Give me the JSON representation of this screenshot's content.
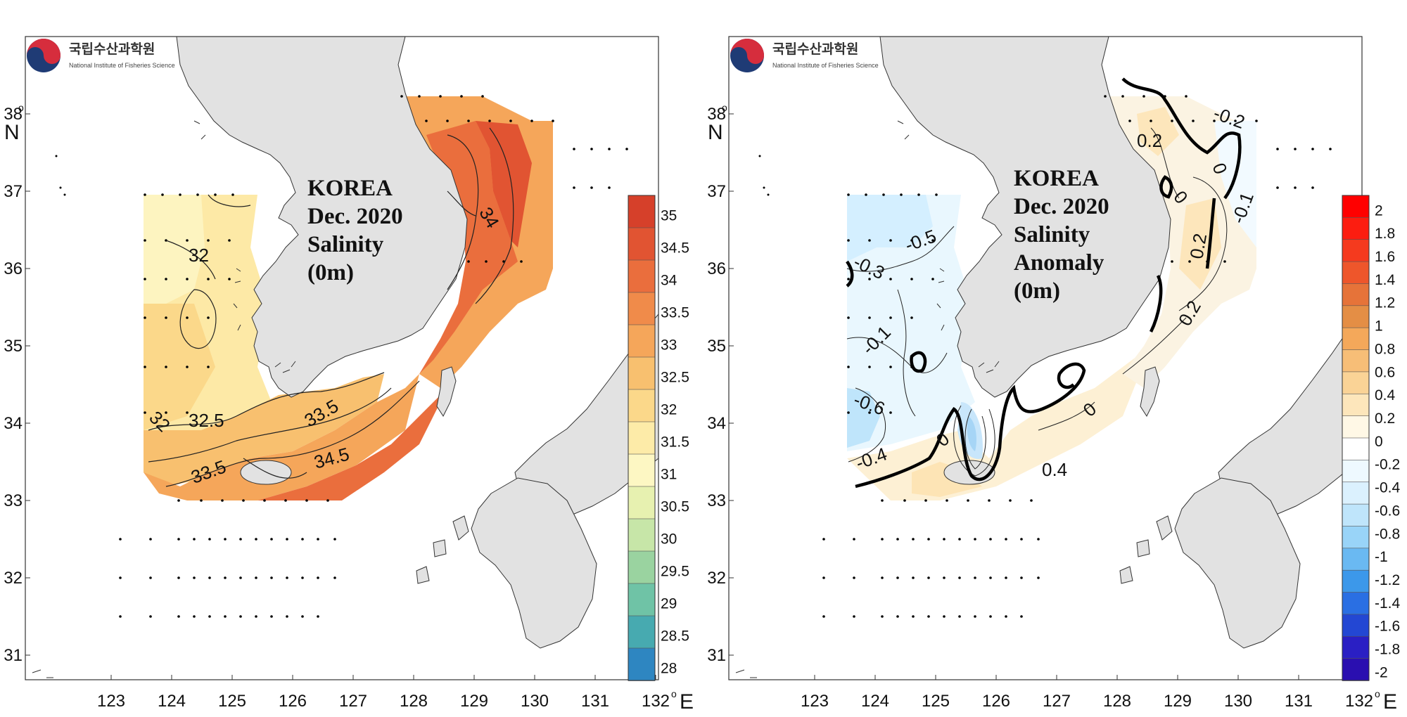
{
  "logo": {
    "korean": "국립수산과학원",
    "english": "National Institute of Fisheries Science"
  },
  "map_data": {
    "lon_ticks": [
      "123",
      "124",
      "125",
      "126",
      "127",
      "128",
      "129",
      "130",
      "131",
      "132"
    ],
    "lat_ticks": [
      "31",
      "32",
      "33",
      "34",
      "35",
      "36",
      "37",
      "38"
    ],
    "lon_unit": "E",
    "lat_unit": "N",
    "degree_symbol": "o"
  },
  "panels": [
    {
      "id": "salinity",
      "title_lines": [
        "KOREA",
        "Dec. 2020",
        "Salinity",
        "(0m)"
      ],
      "contour_labels": [
        "32",
        "32",
        "32.5",
        "33.5",
        "33.5",
        "34.5",
        "34"
      ],
      "colorbar": {
        "labels": [
          "35",
          "34.5",
          "34",
          "33.5",
          "33",
          "32.5",
          "32",
          "31.5",
          "31",
          "30.5",
          "30",
          "29.5",
          "29",
          "28.5",
          "28"
        ],
        "colors": [
          "#d6402a",
          "#e15432",
          "#ea6e3d",
          "#f08b4a",
          "#f5a65a",
          "#f8c06f",
          "#fbd88a",
          "#fdeba8",
          "#fdf7c3",
          "#e7f1b0",
          "#c7e6a8",
          "#9ad3a0",
          "#6fc3a6",
          "#47aab0",
          "#2e86c1"
        ]
      }
    },
    {
      "id": "anomaly",
      "title_lines": [
        "KOREA",
        "Dec. 2020",
        "Salinity",
        "Anomaly",
        "(0m)"
      ],
      "contour_labels": [
        "0.2",
        "-0.2",
        "0",
        "0",
        "-0.1",
        "0.2",
        "0.2",
        "-0.5",
        "-0.3",
        "-0.1",
        "-0.6",
        "-0.4",
        "0",
        "0.4",
        "0"
      ],
      "colorbar": {
        "labels": [
          "2",
          "1.8",
          "1.6",
          "1.4",
          "1.2",
          "1",
          "0.8",
          "0.6",
          "0.4",
          "0.2",
          "0",
          "-0.2",
          "-0.4",
          "-0.6",
          "-0.8",
          "-1",
          "-1.2",
          "-1.4",
          "-1.6",
          "-1.8",
          "-2"
        ],
        "colors": [
          "#ff0000",
          "#fc1d10",
          "#f53a1e",
          "#ee562b",
          "#e67339",
          "#e48e45",
          "#f4a85a",
          "#f7be77",
          "#fad396",
          "#fde6bb",
          "#fff8e6",
          "#ffffff",
          "#eef9ff",
          "#dbf1fe",
          "#bfe5fb",
          "#99d4f8",
          "#6ab9f2",
          "#3c98ea",
          "#2a6fe3",
          "#2347d3",
          "#2a1fc4",
          "#2a0fb0"
        ]
      }
    }
  ]
}
